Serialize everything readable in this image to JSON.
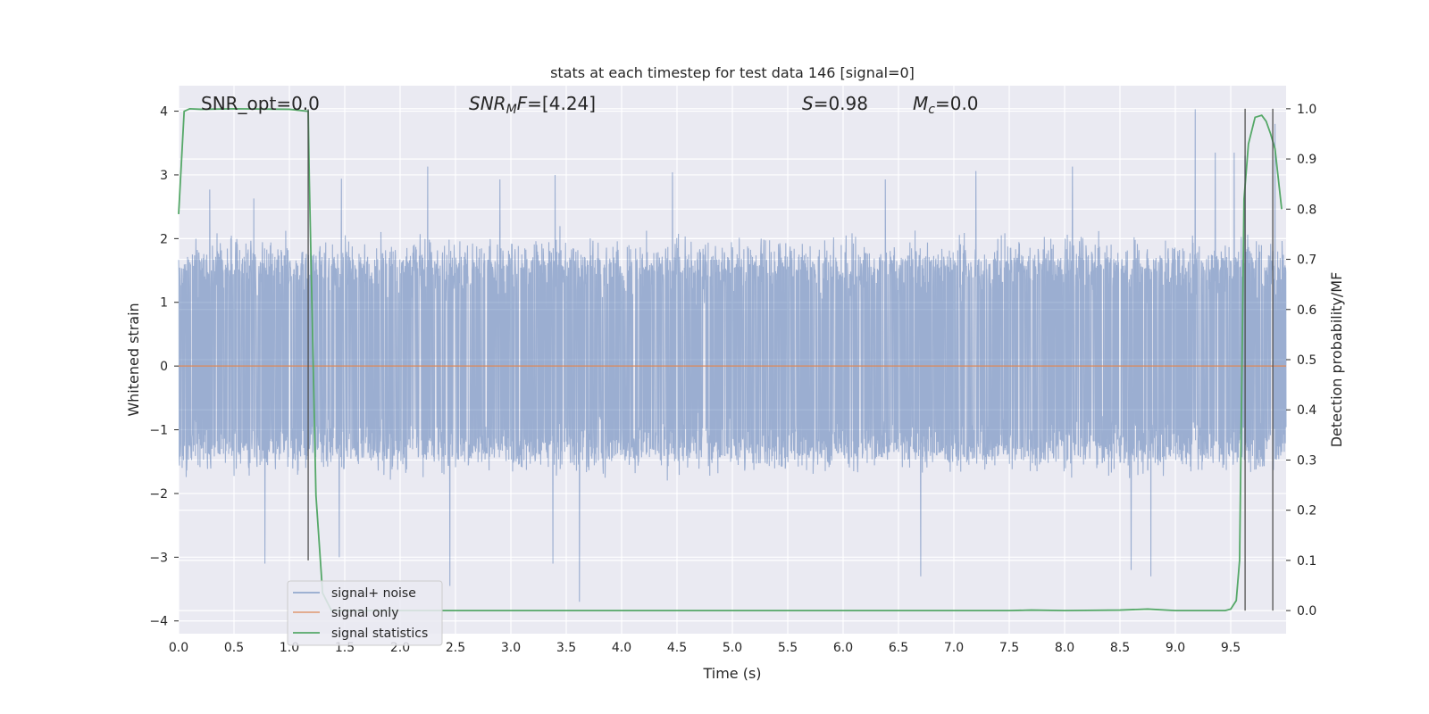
{
  "chart_data": {
    "type": "line",
    "title": "stats at each timestep for test data 146 [signal=0]",
    "xlabel": "Time (s)",
    "ylabel": "Whitened strain",
    "y2label": "Detection probability/MF",
    "xlim": [
      0,
      10
    ],
    "ylim": [
      -4.2,
      4.4
    ],
    "y2lim": [
      -0.046,
      1.046
    ],
    "xticks": [
      "0.0",
      "0.5",
      "1.0",
      "1.5",
      "2.0",
      "2.5",
      "3.0",
      "3.5",
      "4.0",
      "4.5",
      "5.0",
      "5.5",
      "6.0",
      "6.5",
      "7.0",
      "7.5",
      "8.0",
      "8.5",
      "9.0",
      "9.5"
    ],
    "yticks": [
      "−4",
      "−3",
      "−2",
      "−1",
      "0",
      "1",
      "2",
      "3",
      "4"
    ],
    "y2ticks": [
      "0.0",
      "0.1",
      "0.2",
      "0.3",
      "0.4",
      "0.5",
      "0.6",
      "0.7",
      "0.8",
      "0.9",
      "1.0"
    ],
    "grid": true,
    "legend_position": "lower-left",
    "annotations": [
      {
        "parts": [
          {
            "t": "SNR_opt=0.0",
            "i": false
          }
        ]
      },
      {
        "parts": [
          {
            "t": "SNR",
            "i": true
          },
          {
            "t": "M",
            "i": true,
            "sub": true
          },
          {
            "t": "F",
            "i": true
          },
          {
            "t": "=[4.24]",
            "i": false
          }
        ]
      },
      {
        "parts": [
          {
            "t": "S",
            "i": true
          },
          {
            "t": "=0.98",
            "i": false
          }
        ]
      },
      {
        "parts": [
          {
            "t": "M",
            "i": true
          },
          {
            "t": "c",
            "i": true,
            "sub": true
          },
          {
            "t": "=0.0",
            "i": false
          }
        ]
      }
    ],
    "series": [
      {
        "name": "signal+ noise",
        "color": "#4c72b0",
        "axis": "left",
        "band": {
          "typical_upper": 1.7,
          "typical_lower": -1.4,
          "max": 4.03,
          "min": -3.7
        },
        "peaks": [
          {
            "x": 0.28,
            "y": 2.77
          },
          {
            "x": 0.68,
            "y": 2.63
          },
          {
            "x": 1.47,
            "y": 2.94
          },
          {
            "x": 2.25,
            "y": 3.13
          },
          {
            "x": 2.9,
            "y": 2.93
          },
          {
            "x": 3.4,
            "y": 3.0
          },
          {
            "x": 4.46,
            "y": 3.04
          },
          {
            "x": 6.38,
            "y": 2.93
          },
          {
            "x": 7.2,
            "y": 3.06
          },
          {
            "x": 8.07,
            "y": 3.13
          },
          {
            "x": 9.18,
            "y": 4.03
          },
          {
            "x": 9.36,
            "y": 3.35
          },
          {
            "x": 9.53,
            "y": 3.35
          },
          {
            "x": 9.63,
            "y": 3.3
          },
          {
            "x": 9.9,
            "y": 3.8
          },
          {
            "x": 0.78,
            "y": -3.1
          },
          {
            "x": 1.45,
            "y": -3.0
          },
          {
            "x": 2.45,
            "y": -3.45
          },
          {
            "x": 3.38,
            "y": -3.1
          },
          {
            "x": 3.62,
            "y": -3.7
          },
          {
            "x": 6.7,
            "y": -3.3
          },
          {
            "x": 8.6,
            "y": -3.2
          },
          {
            "x": 8.78,
            "y": -3.3
          }
        ]
      },
      {
        "name": "signal only",
        "color": "#dd8452",
        "axis": "left",
        "x": [
          0,
          10
        ],
        "y": [
          0,
          0
        ]
      },
      {
        "name": "signal statistics",
        "color": "#55a868",
        "axis": "right",
        "x": [
          0,
          0.05,
          0.1,
          0.2,
          0.5,
          1.0,
          1.17,
          1.18,
          1.24,
          1.3,
          1.38,
          1.6,
          7.5,
          7.7,
          8.0,
          8.5,
          8.75,
          9.0,
          9.45,
          9.5,
          9.55,
          9.58,
          9.62,
          9.66,
          9.72,
          9.78,
          9.82,
          9.86,
          9.9,
          9.96
        ],
        "y": [
          0.79,
          0.995,
          1.0,
          0.999,
          1.0,
          0.999,
          0.995,
          0.86,
          0.23,
          0.035,
          0.0,
          0.0,
          0.0,
          0.001,
          0.0,
          0.001,
          0.003,
          0.0,
          0.0,
          0.003,
          0.02,
          0.1,
          0.82,
          0.93,
          0.983,
          0.987,
          0.975,
          0.95,
          0.92,
          0.8
        ]
      }
    ],
    "markers": [
      {
        "x": 1.17,
        "ymin": 0.1,
        "ymax": 0.999,
        "color": "#444444"
      },
      {
        "x": 9.63,
        "ymin": 0.0,
        "ymax": 1.0,
        "color": "#444444"
      },
      {
        "x": 9.88,
        "ymin": 0.0,
        "ymax": 1.0,
        "color": "#444444"
      }
    ]
  }
}
